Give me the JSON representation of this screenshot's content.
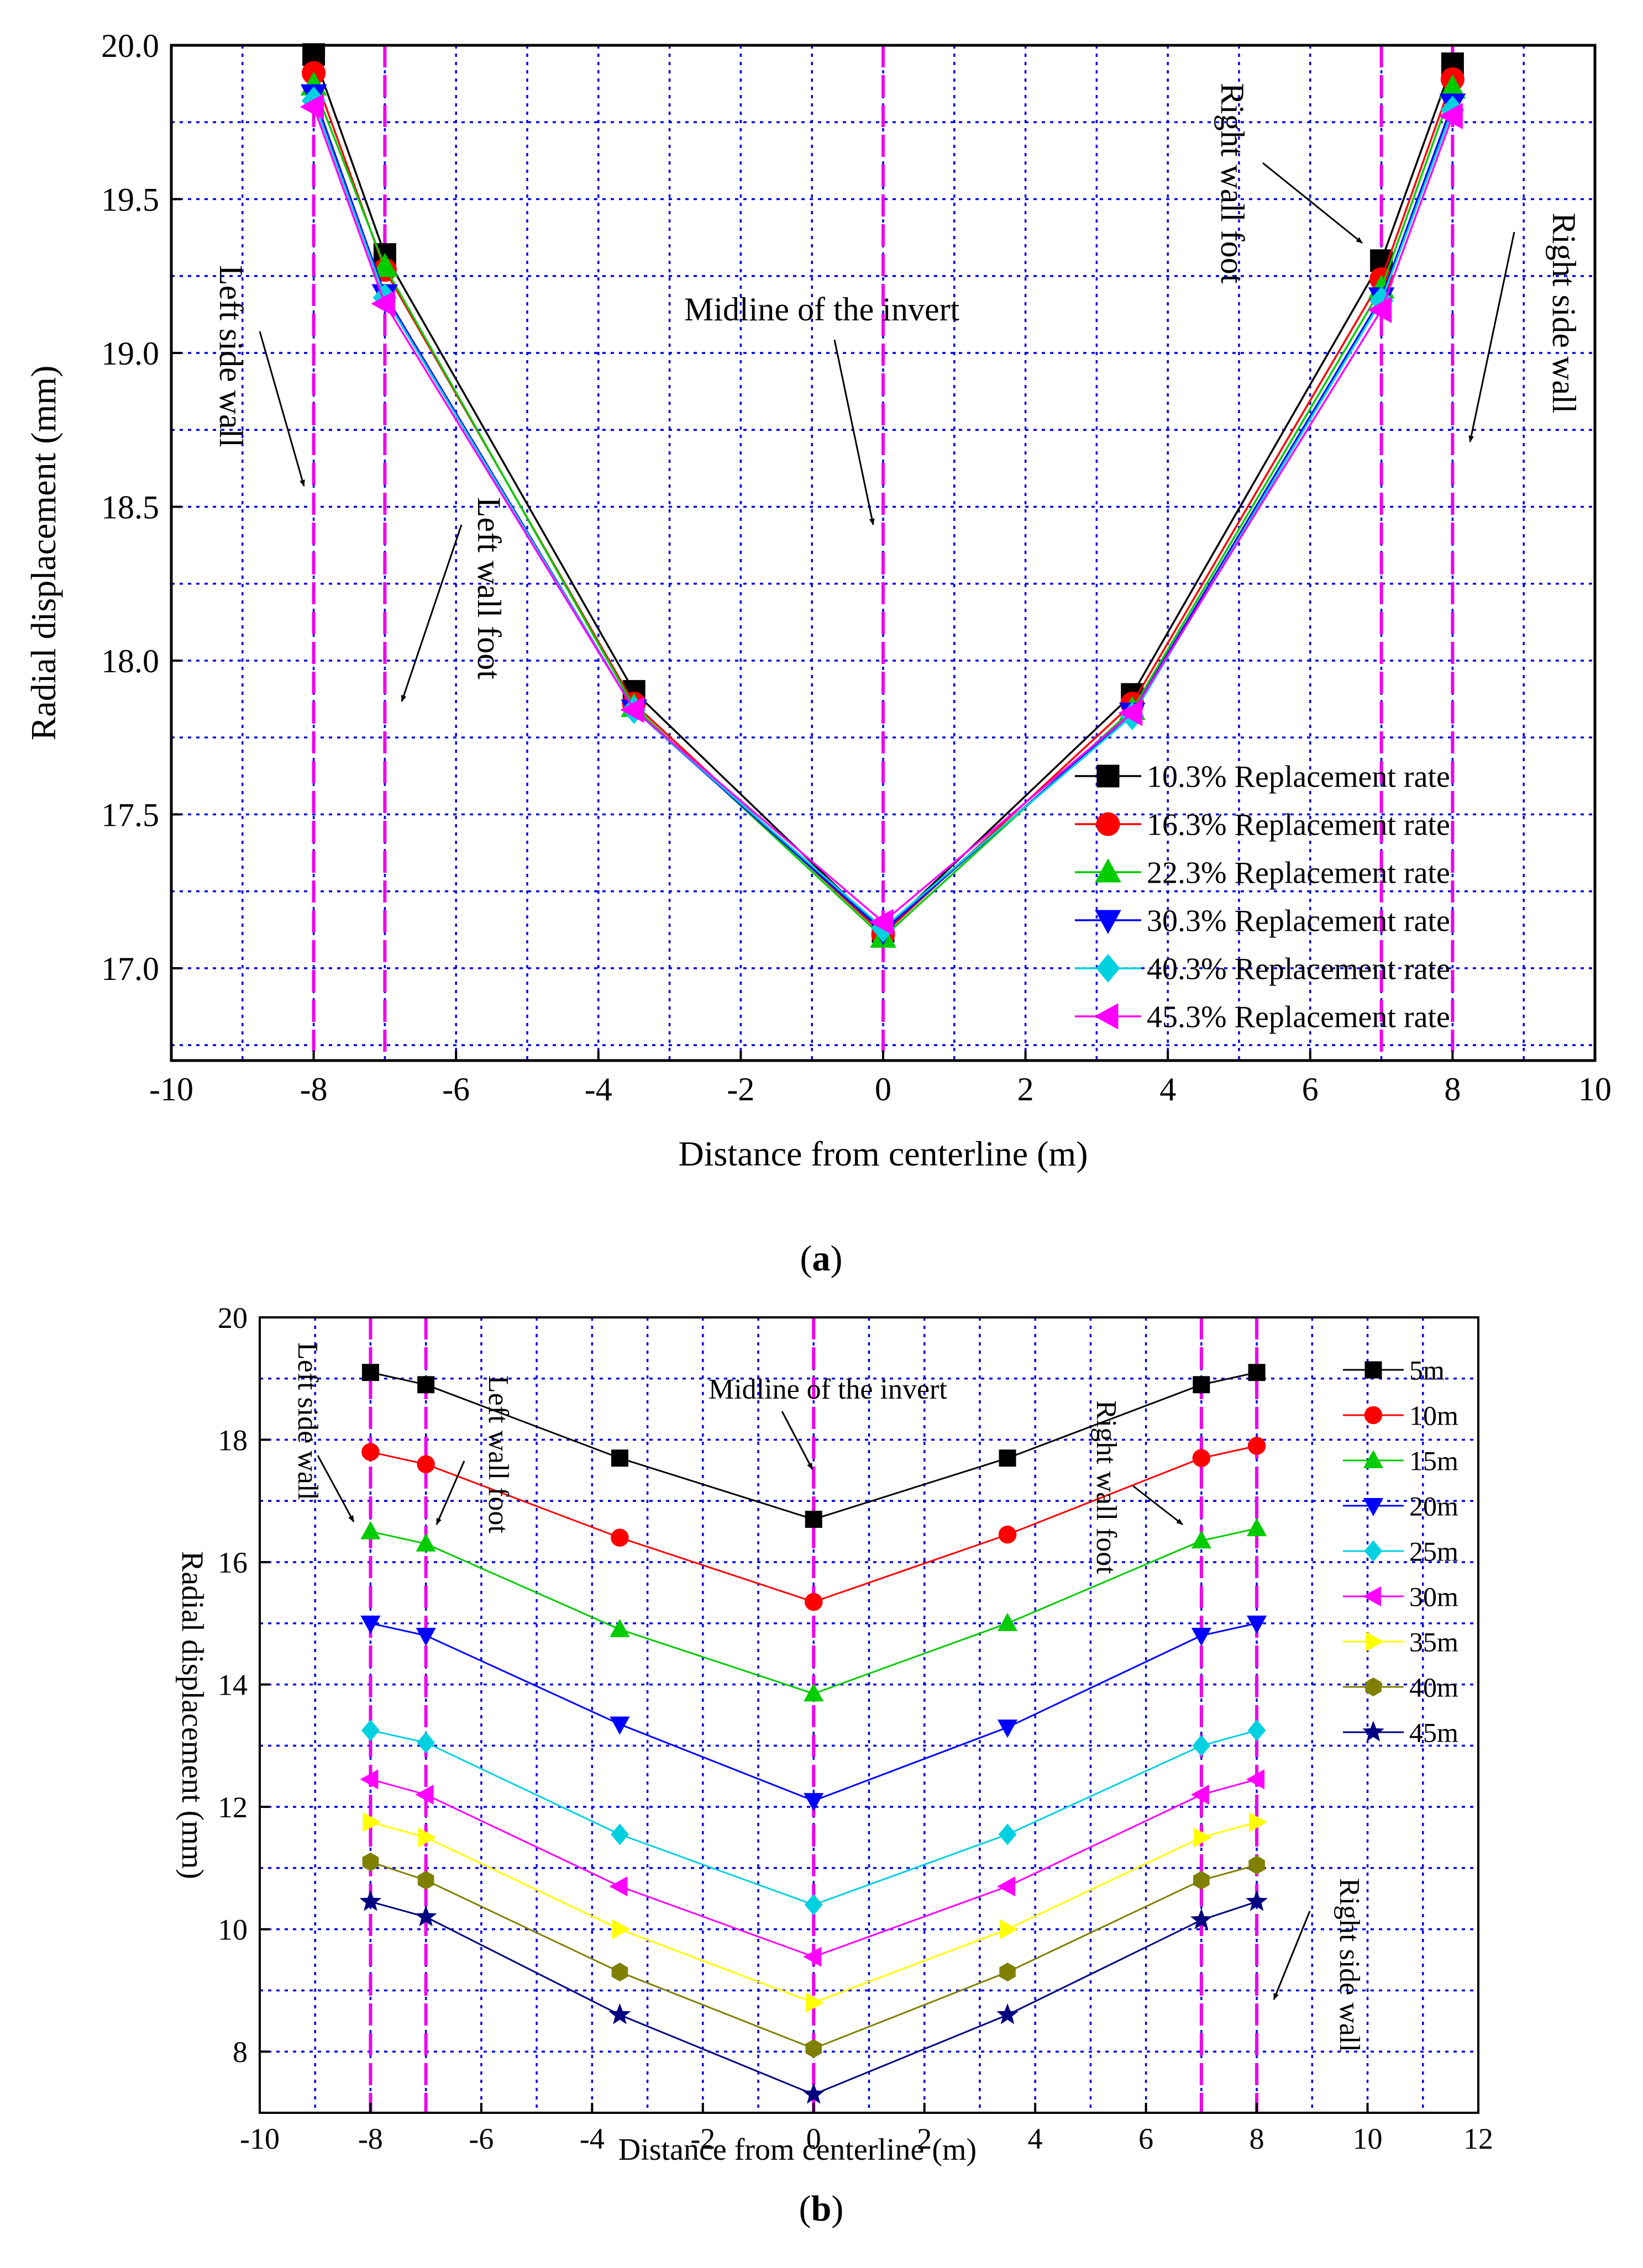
{
  "captions": {
    "a": "a",
    "b": "b"
  },
  "chart_data": [
    {
      "id": "a",
      "type": "line",
      "xlabel": "Distance from centerline (m)",
      "ylabel": "Radial displacement (mm)",
      "xlim": [
        -10,
        10
      ],
      "ylim": [
        16.7,
        20.0
      ],
      "x_ticks": [
        -10,
        -8,
        -6,
        -4,
        -2,
        0,
        2,
        4,
        6,
        8,
        10
      ],
      "y_ticks": [
        17.0,
        17.5,
        18.0,
        18.5,
        19.0,
        19.5,
        20.0
      ],
      "x_tick_labels": [
        "-10",
        "-8",
        "-6",
        "-4",
        "-2",
        "0",
        "2",
        "4",
        "6",
        "8",
        "10"
      ],
      "y_tick_labels": [
        "17.0",
        "17.5",
        "18.0",
        "18.5",
        "19.0",
        "19.5",
        "20.0"
      ],
      "grid_x": [
        -9,
        -8,
        -7,
        -6,
        -5,
        -4,
        -3,
        -2,
        -1,
        0,
        1,
        2,
        3,
        4,
        5,
        6,
        7,
        8,
        9
      ],
      "grid_y": [
        16.75,
        17.0,
        17.25,
        17.5,
        17.75,
        18.0,
        18.25,
        18.5,
        18.75,
        19.0,
        19.25,
        19.5,
        19.75
      ],
      "vlines": [
        -8,
        -7,
        0,
        7,
        8
      ],
      "x": [
        -8,
        -7,
        -3.5,
        0,
        3.5,
        7,
        8
      ],
      "series": [
        {
          "name": "10.3% Replacement rate",
          "color": "#000000",
          "marker": "square",
          "values": [
            19.97,
            19.32,
            17.9,
            17.12,
            17.89,
            19.3,
            19.94
          ]
        },
        {
          "name": "16.3% Replacement rate",
          "color": "#ff0000",
          "marker": "circle",
          "values": [
            19.91,
            19.27,
            17.86,
            17.11,
            17.86,
            19.24,
            19.89
          ]
        },
        {
          "name": "22.3% Replacement rate",
          "color": "#00cc00",
          "marker": "triangle-up",
          "values": [
            19.87,
            19.28,
            17.85,
            17.1,
            17.84,
            19.21,
            19.86
          ]
        },
        {
          "name": "30.3% Replacement rate",
          "color": "#0000ff",
          "marker": "triangle-down",
          "values": [
            19.84,
            19.19,
            17.84,
            17.12,
            17.83,
            19.18,
            19.81
          ]
        },
        {
          "name": "40.3% Replacement rate",
          "color": "#00d0e0",
          "marker": "diamond",
          "values": [
            19.82,
            19.18,
            17.84,
            17.13,
            17.82,
            19.17,
            19.79
          ]
        },
        {
          "name": "45.3% Replacement rate",
          "color": "#ff00ff",
          "marker": "triangle-left",
          "values": [
            19.8,
            19.16,
            17.84,
            17.15,
            17.83,
            19.14,
            19.77
          ]
        }
      ],
      "annotations": [
        {
          "text": "Left side wall",
          "orientation": "rotated-cw"
        },
        {
          "text": "Left wall foot",
          "orientation": "rotated-cw"
        },
        {
          "text": "Midline of the invert",
          "orientation": "horizontal"
        },
        {
          "text": "Right wall foot",
          "orientation": "rotated-cw"
        },
        {
          "text": "Right side wall",
          "orientation": "rotated-cw"
        }
      ]
    },
    {
      "id": "b",
      "type": "line",
      "xlabel": "Distance from centerline (m)",
      "ylabel": "Radial displacement (mm)",
      "xlim": [
        -10,
        12
      ],
      "ylim": [
        7,
        20
      ],
      "x_ticks": [
        -10,
        -8,
        -6,
        -4,
        -2,
        0,
        2,
        4,
        6,
        8,
        10,
        12
      ],
      "y_ticks": [
        8,
        10,
        12,
        14,
        16,
        18,
        20
      ],
      "x_tick_labels": [
        "-10",
        "-8",
        "-6",
        "-4",
        "-2",
        "0",
        "2",
        "4",
        "6",
        "8",
        "10",
        "12"
      ],
      "y_tick_labels": [
        "8",
        "10",
        "12",
        "14",
        "16",
        "18",
        "20"
      ],
      "grid_x": [
        -9,
        -8,
        -7,
        -6,
        -5,
        -4,
        -3,
        -2,
        -1,
        0,
        1,
        2,
        3,
        4,
        5,
        6,
        7,
        8,
        9,
        10,
        11
      ],
      "grid_y": [
        8,
        9,
        10,
        11,
        12,
        13,
        14,
        15,
        16,
        17,
        18,
        19
      ],
      "vlines": [
        -8,
        -7,
        0,
        7,
        8
      ],
      "x": [
        -8,
        -7,
        -3.5,
        0,
        3.5,
        7,
        8
      ],
      "series": [
        {
          "name": "5m",
          "color": "#000000",
          "marker": "square",
          "values": [
            19.1,
            18.9,
            17.7,
            16.7,
            17.7,
            18.9,
            19.1
          ]
        },
        {
          "name": "10m",
          "color": "#ff0000",
          "marker": "circle",
          "values": [
            17.8,
            17.6,
            16.4,
            15.35,
            16.45,
            17.7,
            17.9
          ]
        },
        {
          "name": "15m",
          "color": "#00cc00",
          "marker": "triangle-up",
          "values": [
            16.5,
            16.3,
            14.9,
            13.85,
            15.0,
            16.35,
            16.55
          ]
        },
        {
          "name": "20m",
          "color": "#0000ff",
          "marker": "triangle-down",
          "values": [
            15.0,
            14.8,
            13.35,
            12.1,
            13.3,
            14.8,
            15.0
          ]
        },
        {
          "name": "25m",
          "color": "#00d0e0",
          "marker": "diamond",
          "values": [
            13.25,
            13.05,
            11.55,
            10.4,
            11.55,
            13.0,
            13.25
          ]
        },
        {
          "name": "30m",
          "color": "#ff00ff",
          "marker": "triangle-left",
          "values": [
            12.45,
            12.2,
            10.7,
            9.55,
            10.7,
            12.2,
            12.45
          ]
        },
        {
          "name": "35m",
          "color": "#ffff00",
          "marker": "triangle-right",
          "values": [
            11.75,
            11.5,
            10.0,
            8.8,
            10.0,
            11.5,
            11.75
          ]
        },
        {
          "name": "40m",
          "color": "#808000",
          "marker": "hexagon",
          "values": [
            11.1,
            10.8,
            9.3,
            8.05,
            9.3,
            10.8,
            11.05
          ]
        },
        {
          "name": "45m",
          "color": "#000080",
          "marker": "star",
          "values": [
            10.45,
            10.2,
            8.6,
            7.3,
            8.6,
            10.15,
            10.45
          ]
        }
      ],
      "annotations": [
        {
          "text": "Left side wall",
          "orientation": "rotated-cw"
        },
        {
          "text": "Left wall foot",
          "orientation": "rotated-cw"
        },
        {
          "text": "Midline of the invert",
          "orientation": "horizontal"
        },
        {
          "text": "Right wall foot",
          "orientation": "rotated-cw"
        },
        {
          "text": "Right side wall",
          "orientation": "rotated-cw"
        }
      ]
    }
  ]
}
